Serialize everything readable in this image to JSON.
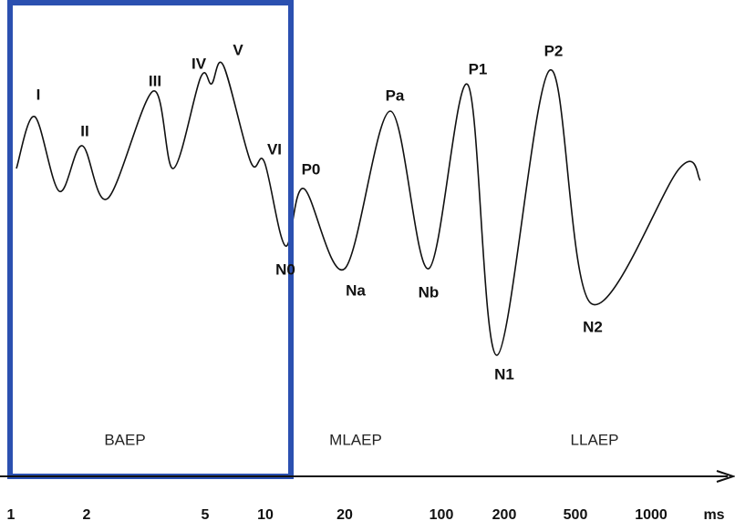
{
  "peaks": [
    "I",
    "II",
    "III",
    "IV",
    "V",
    "VI",
    "P0",
    "N0",
    "Na",
    "Pa",
    "Nb",
    "P1",
    "N1",
    "P2",
    "N2"
  ],
  "regions": [
    "BAEP",
    "MLAEP",
    "LLAEP"
  ],
  "axis": {
    "ticks": [
      "1",
      "2",
      "5",
      "10",
      "20",
      "100",
      "200",
      "500",
      "1000"
    ],
    "unit": "ms"
  }
}
